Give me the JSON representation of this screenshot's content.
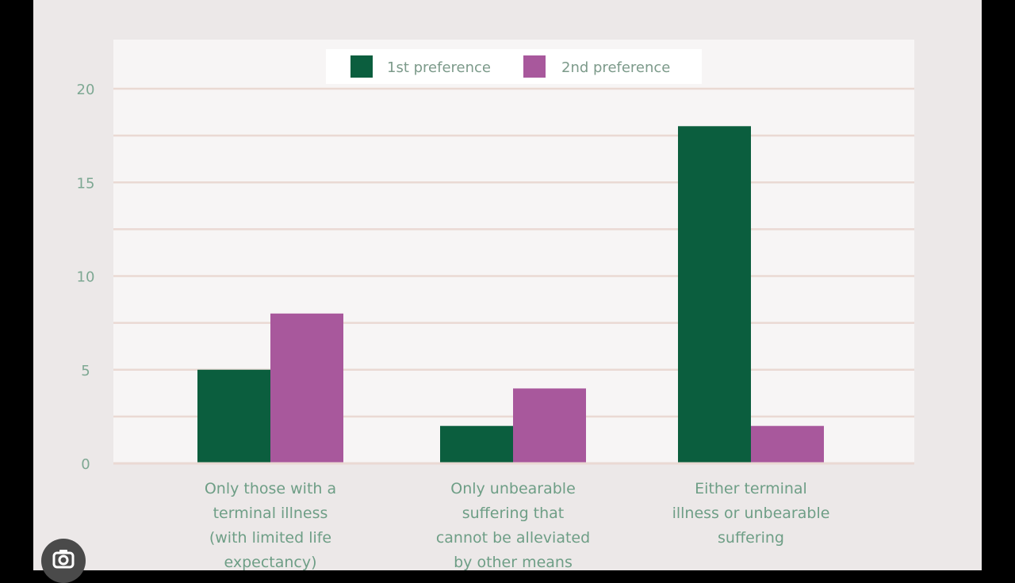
{
  "chart_data": {
    "type": "bar",
    "categories": [
      [
        "Only those with a",
        "terminal illness",
        "(with limited life",
        "expectancy)"
      ],
      [
        "Only unbearable",
        "suffering that",
        "cannot be alleviated",
        "by other means"
      ],
      [
        "Either terminal",
        "illness or unbearable",
        "suffering"
      ]
    ],
    "series": [
      {
        "name": "1st preference",
        "values": [
          5,
          2,
          18
        ],
        "color": "#0b5e3e"
      },
      {
        "name": "2nd preference",
        "values": [
          8,
          4,
          2
        ],
        "color": "#a8589c"
      }
    ],
    "yticks": [
      "0",
      "5",
      "10",
      "15",
      "20"
    ],
    "ylim": [
      0,
      20
    ],
    "grid": true,
    "legend_position": "top-center",
    "title": "",
    "xlabel": "",
    "ylabel": ""
  },
  "colors": {
    "background": "#ece8e8",
    "plot_background": "#f7f5f5",
    "grid": "#ead9d3",
    "tick_text": "#7ea893",
    "frame": "#000000"
  },
  "overlay": {
    "lens_icon": "camera-lens-icon"
  }
}
